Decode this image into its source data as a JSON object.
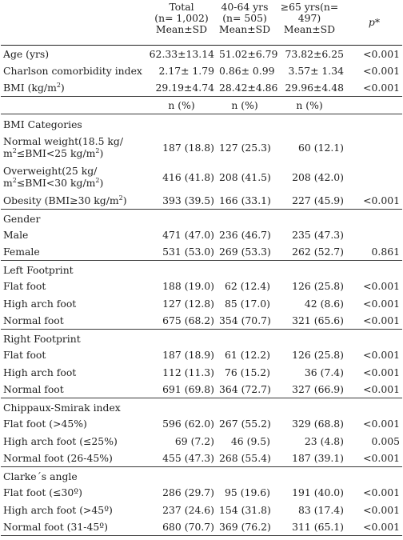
{
  "header": {
    "col1": "Total\n(n= 1,002)\nMean±SD",
    "col1_lines": [
      "Total",
      "(n= 1,002)",
      "Mean±SD"
    ],
    "col2_lines": [
      "40-64 yrs",
      "(n= 505)",
      "Mean±SD"
    ],
    "col3_lines": [
      "≥65 yrs(n=",
      "497)",
      "Mean±SD"
    ],
    "p_label": "p*"
  },
  "continuous": [
    {
      "label": "Age (yrs)",
      "total": "62.33±13.14",
      "g1": "51.02±6.79",
      "g2": "73.82±6.25",
      "p": "<0.001"
    },
    {
      "label": "Charlson comorbidity index",
      "total": "2.17± 1.79",
      "g1": "0.86± 0.99",
      "g2": "3.57± 1.34",
      "p": "<0.001"
    },
    {
      "label": "BMI (kg/m",
      "label_sup": "2",
      "label_after": ")",
      "total": "29.19±4.74",
      "g1": "28.42±4.86",
      "g2": "29.96±4.48",
      "p": "<0.001"
    }
  ],
  "subheader": {
    "total": "n (%)",
    "g1": "n (%)",
    "g2": "n (%)"
  },
  "bmi": {
    "title": "BMI Categories",
    "rows": [
      {
        "label_l1": "Normal weight(18.5 kg/",
        "label_l2a": "m",
        "label_l2sup": "2",
        "label_l2b": "≤BMI<25 kg/m",
        "label_l2sup2": "2",
        "label_l2c": ")",
        "total": "187 (18.8)",
        "g1": "127 (25.3)",
        "g2": "60 (12.1)",
        "p": ""
      },
      {
        "label_l1": "Overweight(25 kg/",
        "label_l2a": "m",
        "label_l2sup": "2",
        "label_l2b": "≤BMI<30 kg/m",
        "label_l2sup2": "2",
        "label_l2c": ")",
        "total": "416 (41.8)",
        "g1": "208 (41.5)",
        "g2": "208 (42.0)",
        "p": ""
      }
    ],
    "obesity": {
      "label": "Obesity (BMI≥30 kg/m",
      "label_sup": "2",
      "label_after": ")",
      "total": "393 (39.5)",
      "g1": "166 (33.1)",
      "g2": "227 (45.9)",
      "p": "<0.001"
    }
  },
  "gender": {
    "title": "Gender",
    "rows": [
      {
        "label": "Male",
        "total": "471 (47.0)",
        "g1": "236 (46.7)",
        "g2": "235 (47.3)",
        "p": ""
      },
      {
        "label": "Female",
        "total": "531 (53.0)",
        "g1": "269 (53.3)",
        "g2": "262 (52.7)",
        "p": "0.861"
      }
    ]
  },
  "left_fp": {
    "title": "Left Footprint",
    "rows": [
      {
        "label": "Flat foot",
        "total": "188 (19.0)",
        "g1": "62 (12.4)",
        "g2": "126 (25.8)",
        "p": "<0.001"
      },
      {
        "label": "High arch foot",
        "total": "127 (12.8)",
        "g1": "85 (17.0)",
        "g2": "42 (8.6)",
        "p": "<0.001"
      },
      {
        "label": "Normal foot",
        "total": "675 (68.2)",
        "g1": "354 (70.7)",
        "g2": "321 (65.6)",
        "p": "<0.001"
      }
    ]
  },
  "right_fp": {
    "title": "Right Footprint",
    "rows": [
      {
        "label": "Flat foot",
        "total": "187 (18.9)",
        "g1": "61 (12.2)",
        "g2": "126 (25.8)",
        "p": "<0.001"
      },
      {
        "label": "High arch foot",
        "total": "112 (11.3)",
        "g1": "76 (15.2)",
        "g2": "36 (7.4)",
        "p": "<0.001"
      },
      {
        "label": "Normal foot",
        "total": "691 (69.8)",
        "g1": "364 (72.7)",
        "g2": "327 (66.9)",
        "p": "<0.001"
      }
    ]
  },
  "chippaux": {
    "title": "Chippaux-Smirak index",
    "rows": [
      {
        "label": "Flat foot (>45%)",
        "total": "596 (62.0)",
        "g1": "267 (55.2)",
        "g2": "329 (68.8)",
        "p": "<0.001"
      },
      {
        "label": "High arch foot (≤25%)",
        "total": "69 (7.2)",
        "g1": "46 (9.5)",
        "g2": "23 (4.8)",
        "p": "0.005"
      },
      {
        "label": "Normal foot (26-45%)",
        "total": "455 (47.3)",
        "g1": "268 (55.4)",
        "g2": "187 (39.1)",
        "p": "<0.001"
      }
    ]
  },
  "clarke": {
    "title": "Clarke´s angle",
    "rows": [
      {
        "label": "Flat foot (≤30º)",
        "total": "286 (29.7)",
        "g1": "95 (19.6)",
        "g2": "191 (40.0)",
        "p": "<0.001"
      },
      {
        "label": "High arch foot (>45º)",
        "total": "237 (24.6)",
        "g1": "154 (31.8)",
        "g2": "83 (17.4)",
        "p": "<0.001"
      },
      {
        "label": "Normal foot (31-45º)",
        "total": "680 (70.7)",
        "g1": "369 (76.2)",
        "g2": "311 (65.1)",
        "p": "<0.001"
      }
    ]
  }
}
